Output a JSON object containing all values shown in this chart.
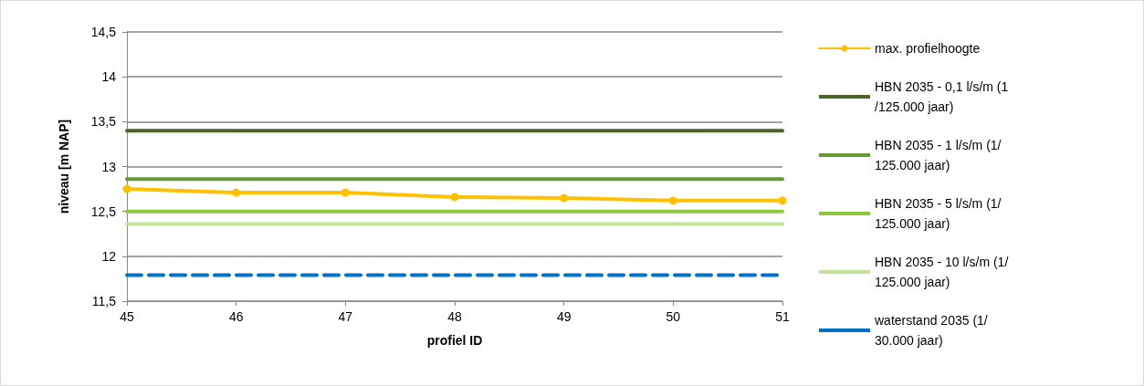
{
  "chart_data": {
    "type": "line",
    "xlabel": "profiel ID",
    "ylabel": "niveau [m NAP]",
    "x": [
      45,
      46,
      47,
      48,
      49,
      50,
      51
    ],
    "xlim": [
      45,
      51
    ],
    "xticks": [
      45,
      46,
      47,
      48,
      49,
      50,
      51
    ],
    "ylim": [
      11.5,
      14.5
    ],
    "yticks": [
      {
        "value": 11.5,
        "label": "11,5"
      },
      12,
      {
        "value": 12.5,
        "label": "12,5"
      },
      13,
      {
        "value": 13.5,
        "label": "13,5"
      },
      14,
      {
        "value": 14.5,
        "label": "14,5"
      }
    ],
    "grid": "y",
    "legend": "right",
    "series": [
      {
        "name": "max. profielhoogte",
        "color": "#ffc000",
        "marker": "circle",
        "line_style": "solid",
        "values": [
          12.75,
          12.71,
          12.71,
          12.66,
          12.65,
          12.62,
          12.62
        ]
      },
      {
        "name": "HBN 2035 - 0,1 l/s/m (1/125.000 jaar)",
        "color": "#4f6228",
        "marker": "none",
        "line_style": "solid",
        "values": [
          13.4,
          13.4,
          13.4,
          13.4,
          13.4,
          13.4,
          13.4
        ]
      },
      {
        "name": "HBN 2035 - 1 l/s/m (1/125.000 jaar)",
        "color": "#669933",
        "marker": "none",
        "line_style": "solid",
        "values": [
          12.86,
          12.86,
          12.86,
          12.86,
          12.86,
          12.86,
          12.86
        ]
      },
      {
        "name": "HBN 2035 - 5 l/s/m (1/125.000 jaar)",
        "color": "#8dc63f",
        "marker": "none",
        "line_style": "solid",
        "values": [
          12.5,
          12.5,
          12.5,
          12.5,
          12.5,
          12.5,
          12.5
        ]
      },
      {
        "name": "HBN 2035 - 10 l/s/m (1/125.000 jaar)",
        "color": "#c3e19a",
        "marker": "none",
        "line_style": "solid",
        "values": [
          12.36,
          12.36,
          12.36,
          12.36,
          12.36,
          12.36,
          12.36
        ]
      },
      {
        "name": "waterstand 2035 (1/30.000 jaar)",
        "color": "#0070c0",
        "marker": "none",
        "line_style": "dashed",
        "values": [
          11.79,
          11.79,
          11.79,
          11.79,
          11.79,
          11.79,
          11.79
        ]
      }
    ]
  }
}
